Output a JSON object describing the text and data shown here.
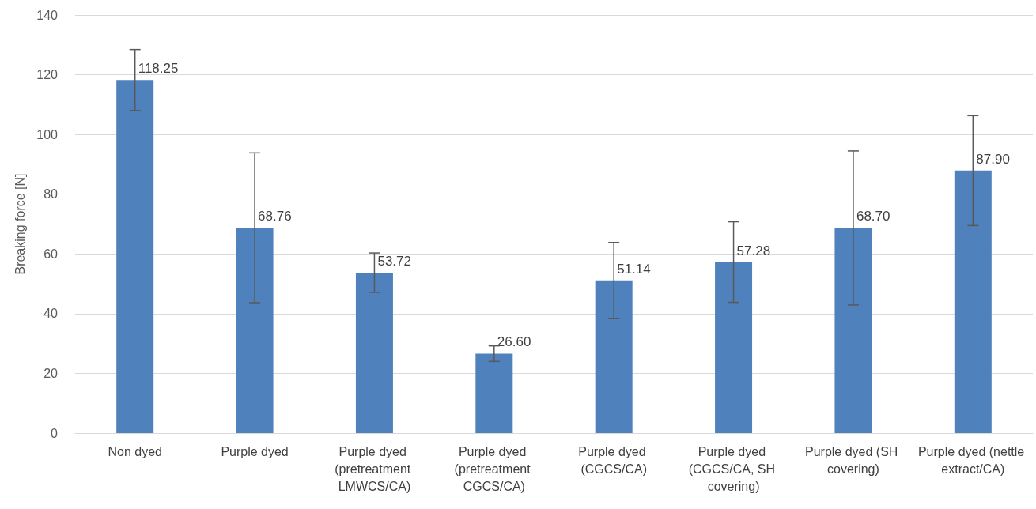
{
  "chart_data": {
    "type": "bar",
    "ylabel": "Breaking force [N]",
    "categories": [
      "Non dyed",
      "Purple dyed",
      "Purple dyed (pretreatment LMWCS/CA)",
      "Purple dyed (pretreatment CGCS/CA)",
      "Purple dyed (CGCS/CA)",
      "Purple dyed (CGCS/CA, SH covering)",
      "Purple dyed (SH covering)",
      "Purple dyed (nettle extract/CA)"
    ],
    "values": [
      118.25,
      68.76,
      53.72,
      26.6,
      51.14,
      57.28,
      68.7,
      87.9
    ],
    "value_labels": [
      "118.25",
      "68.76",
      "53.72",
      "26.60",
      "51.14",
      "57.28",
      "68.70",
      "87.90"
    ],
    "errors": [
      10.2,
      25.1,
      6.6,
      2.6,
      12.7,
      13.5,
      25.8,
      18.4
    ],
    "color": "#4f81bd",
    "ylim": [
      0,
      140
    ],
    "yticks": [
      0,
      20,
      40,
      60,
      80,
      100,
      120,
      140
    ],
    "grid": "y"
  }
}
